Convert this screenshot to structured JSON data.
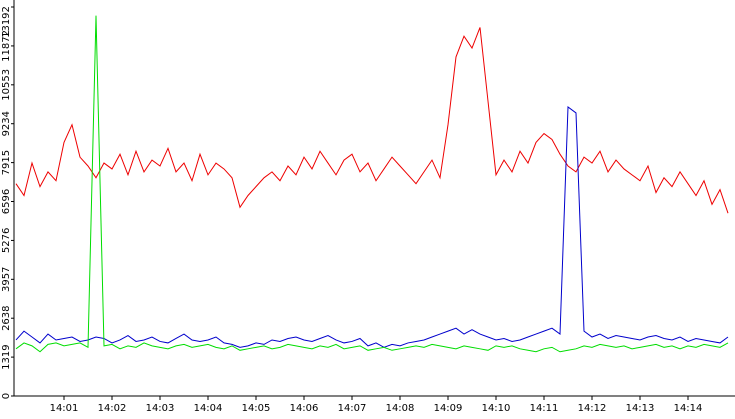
{
  "chart_data": {
    "type": "line",
    "categories": [
      null,
      null,
      null,
      null,
      null,
      null,
      "14:01",
      null,
      null,
      null,
      null,
      null,
      "14:02",
      null,
      null,
      null,
      null,
      null,
      "14:03",
      null,
      null,
      null,
      null,
      null,
      "14:04",
      null,
      null,
      null,
      null,
      null,
      "14:05",
      null,
      null,
      null,
      null,
      null,
      "14:06",
      null,
      null,
      null,
      null,
      null,
      "14:07",
      null,
      null,
      null,
      null,
      null,
      "14:08",
      null,
      null,
      null,
      null,
      null,
      "14:09",
      null,
      null,
      null,
      null,
      null,
      "14:10",
      null,
      null,
      null,
      null,
      null,
      "14:11",
      null,
      null,
      null,
      null,
      null,
      "14:12",
      null,
      null,
      null,
      null,
      null,
      "14:13",
      null,
      null,
      null,
      null,
      null,
      "14:14",
      null,
      null,
      null,
      null,
      null
    ],
    "series": [
      {
        "color": "#ee0000",
        "values": [
          7200,
          6800,
          7900,
          7100,
          7600,
          7300,
          8600,
          9200,
          8100,
          7800,
          7400,
          7900,
          7700,
          8200,
          7500,
          8300,
          7600,
          8000,
          7800,
          8400,
          7600,
          7900,
          7300,
          8200,
          7500,
          7900,
          7700,
          7400,
          6400,
          6800,
          7100,
          7400,
          7600,
          7300,
          7800,
          7500,
          8100,
          7700,
          8300,
          7900,
          7500,
          8000,
          8200,
          7600,
          7900,
          7300,
          7700,
          8100,
          7800,
          7500,
          7200,
          7600,
          8000,
          7400,
          9200,
          11500,
          12200,
          11800,
          12500,
          10000,
          7500,
          8000,
          7600,
          8300,
          7900,
          8600,
          8900,
          8700,
          8200,
          7800,
          7600,
          8100,
          7900,
          8300,
          7600,
          8000,
          7700,
          7500,
          7300,
          7800,
          6900,
          7400,
          7100,
          7600,
          7200,
          6800,
          7300,
          6500,
          7000,
          6200
        ]
      },
      {
        "color": "#0000cc",
        "values": [
          1900,
          2200,
          2000,
          1800,
          2100,
          1900,
          1950,
          2000,
          1850,
          1900,
          2000,
          1950,
          1800,
          1900,
          2050,
          1850,
          1900,
          2000,
          1850,
          1800,
          1950,
          2100,
          1900,
          1850,
          1900,
          2000,
          1800,
          1750,
          1650,
          1700,
          1800,
          1750,
          1900,
          1850,
          1950,
          2000,
          1900,
          1850,
          1950,
          2050,
          1900,
          1800,
          1850,
          1950,
          1700,
          1800,
          1650,
          1750,
          1700,
          1800,
          1850,
          1900,
          2000,
          2100,
          2200,
          2300,
          2100,
          2250,
          2100,
          2000,
          1900,
          1950,
          1850,
          1900,
          2000,
          2100,
          2200,
          2300,
          2100,
          9800,
          9600,
          2200,
          2000,
          2100,
          1950,
          2050,
          2000,
          1950,
          1900,
          2000,
          2050,
          1950,
          1900,
          2000,
          1850,
          1950,
          1900,
          1850,
          1800,
          2000
        ]
      },
      {
        "color": "#00dd00",
        "values": [
          1600,
          1800,
          1700,
          1500,
          1750,
          1800,
          1700,
          1750,
          1800,
          1650,
          12900,
          1700,
          1750,
          1600,
          1700,
          1650,
          1800,
          1700,
          1650,
          1600,
          1700,
          1750,
          1650,
          1700,
          1750,
          1650,
          1600,
          1700,
          1550,
          1600,
          1650,
          1700,
          1600,
          1650,
          1750,
          1700,
          1650,
          1600,
          1700,
          1650,
          1750,
          1600,
          1650,
          1700,
          1550,
          1600,
          1650,
          1550,
          1600,
          1650,
          1700,
          1650,
          1750,
          1700,
          1650,
          1600,
          1700,
          1650,
          1600,
          1550,
          1700,
          1650,
          1700,
          1600,
          1550,
          1500,
          1600,
          1650,
          1500,
          1550,
          1600,
          1700,
          1650,
          1750,
          1700,
          1650,
          1700,
          1600,
          1650,
          1700,
          1750,
          1650,
          1700,
          1600,
          1700,
          1650,
          1750,
          1700,
          1650,
          1800
        ]
      }
    ],
    "ylim": [
      0,
      13192
    ],
    "yticks": [
      0,
      1319,
      2638,
      3957,
      5276,
      6596,
      7915,
      9234,
      10553,
      11872,
      13192
    ]
  }
}
